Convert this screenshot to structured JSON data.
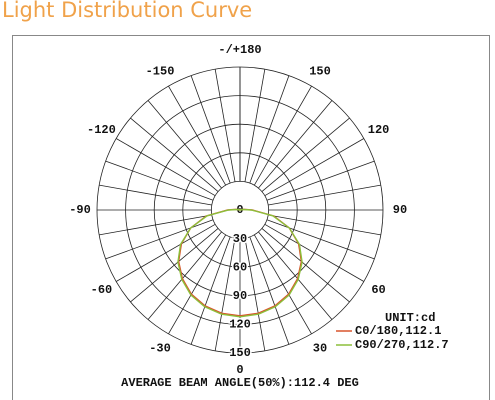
{
  "chart_data": {
    "type": "polar",
    "title": "Light Distribution Curve",
    "theta": [
      -180,
      -170,
      -160,
      -150,
      -140,
      -130,
      -120,
      -110,
      -100,
      -90,
      -80,
      -70,
      -60,
      -50,
      -40,
      -30,
      -20,
      -10,
      0,
      10,
      20,
      30,
      40,
      50,
      60,
      70,
      80,
      90,
      100,
      110,
      120,
      130,
      140,
      150,
      160,
      170,
      180
    ],
    "thetaticks": [
      {
        "value": 180,
        "label": "-/+180"
      },
      150,
      120,
      90,
      60,
      30,
      0,
      -30,
      -60,
      -90,
      -120,
      -150
    ],
    "rlim": [
      0,
      150
    ],
    "rticks": [
      0,
      30,
      60,
      90,
      120,
      150
    ],
    "series": [
      {
        "name": "C0/180,112.1",
        "color": "#d9542c",
        "values": [
          0,
          0,
          0,
          0,
          0,
          0,
          0,
          0,
          4,
          13,
          36,
          55,
          71,
          84,
          94,
          102,
          107,
          110,
          111,
          110,
          107,
          102,
          94,
          84,
          71,
          55,
          36,
          13,
          4,
          0,
          0,
          0,
          0,
          0,
          0,
          0,
          0
        ]
      },
      {
        "name": "C90/270,112.7",
        "color": "#8cbf3a",
        "values": [
          0,
          0,
          0,
          0,
          0,
          0,
          0,
          0,
          3,
          12,
          35,
          55,
          72,
          85,
          95,
          103,
          108,
          111,
          112,
          111,
          108,
          103,
          95,
          85,
          72,
          55,
          35,
          12,
          3,
          0,
          0,
          0,
          0,
          0,
          0,
          0,
          0
        ]
      }
    ],
    "unit_label": "UNIT:cd",
    "annotation": "AVERAGE BEAM ANGLE(50%):112.4 DEG"
  }
}
